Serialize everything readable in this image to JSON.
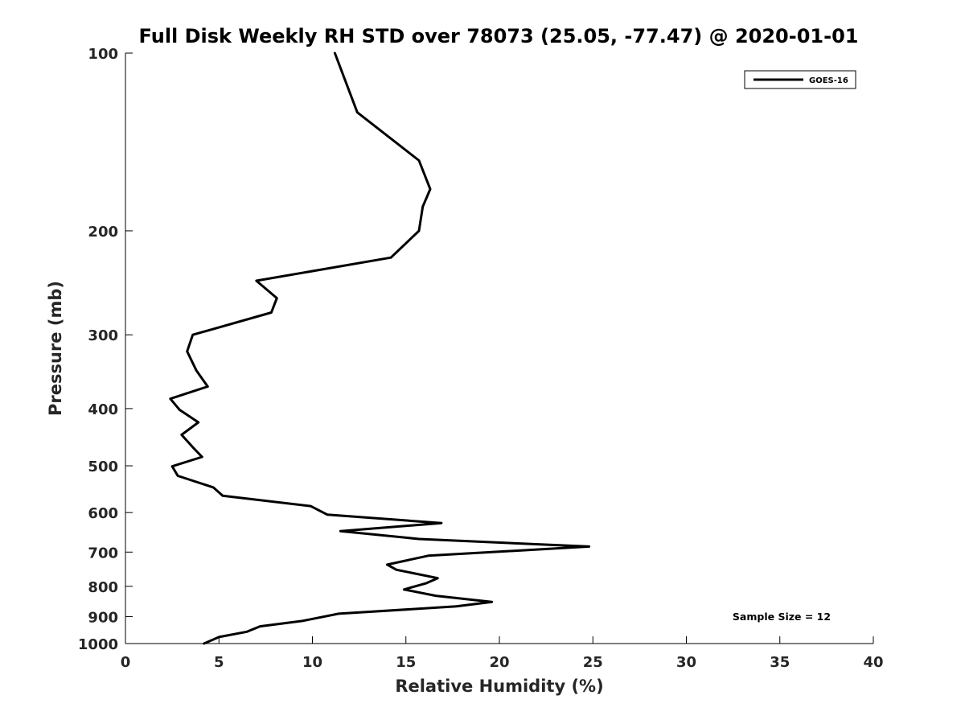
{
  "chart_data": {
    "type": "line",
    "title": "Full Disk Weekly RH STD over 78073 (25.05, -77.47) @ 2020-01-01",
    "xlabel": "Relative Humidity (%)",
    "ylabel": "Pressure (mb)",
    "xlim": [
      0,
      40
    ],
    "ylim": [
      100,
      1000
    ],
    "y_scale": "log",
    "y_inverted": true,
    "grid": false,
    "legend_position": "top-right",
    "x_ticks": [
      0,
      5,
      10,
      15,
      20,
      25,
      30,
      35,
      40
    ],
    "x_tick_labels": [
      "0",
      "5",
      "10",
      "15",
      "20",
      "25",
      "30",
      "35",
      "40"
    ],
    "y_ticks": [
      100,
      200,
      300,
      400,
      500,
      600,
      700,
      800,
      900,
      1000
    ],
    "y_tick_labels": [
      "100",
      "200",
      "300",
      "400",
      "500",
      "600",
      "700",
      "800",
      "900",
      "1000"
    ],
    "series": [
      {
        "name": "GOES-16",
        "color": "#000000",
        "points": [
          [
            11.2,
            100
          ],
          [
            12.4,
            126
          ],
          [
            15.7,
            152
          ],
          [
            16.3,
            170
          ],
          [
            15.9,
            182
          ],
          [
            15.7,
            200
          ],
          [
            14.2,
            222
          ],
          [
            7.0,
            243
          ],
          [
            8.1,
            260
          ],
          [
            7.8,
            275
          ],
          [
            3.6,
            300
          ],
          [
            3.3,
            320
          ],
          [
            3.8,
            345
          ],
          [
            4.4,
            367
          ],
          [
            2.4,
            385
          ],
          [
            2.9,
            402
          ],
          [
            3.9,
            422
          ],
          [
            3.0,
            443
          ],
          [
            3.6,
            465
          ],
          [
            4.1,
            483
          ],
          [
            2.5,
            501
          ],
          [
            2.8,
            520
          ],
          [
            4.7,
            544
          ],
          [
            5.2,
            562
          ],
          [
            9.9,
            585
          ],
          [
            10.8,
            605
          ],
          [
            16.9,
            625
          ],
          [
            11.5,
            645
          ],
          [
            15.7,
            665
          ],
          [
            24.8,
            685
          ],
          [
            16.2,
            710
          ],
          [
            14.0,
            735
          ],
          [
            14.5,
            750
          ],
          [
            16.7,
            775
          ],
          [
            16.1,
            790
          ],
          [
            14.9,
            810
          ],
          [
            16.6,
            830
          ],
          [
            19.6,
            850
          ],
          [
            17.7,
            865
          ],
          [
            11.4,
            890
          ],
          [
            9.5,
            915
          ],
          [
            7.2,
            935
          ],
          [
            6.5,
            955
          ],
          [
            5.0,
            975
          ],
          [
            4.2,
            1000
          ]
        ]
      }
    ],
    "annotations": [
      "Sample Size = 12"
    ]
  }
}
